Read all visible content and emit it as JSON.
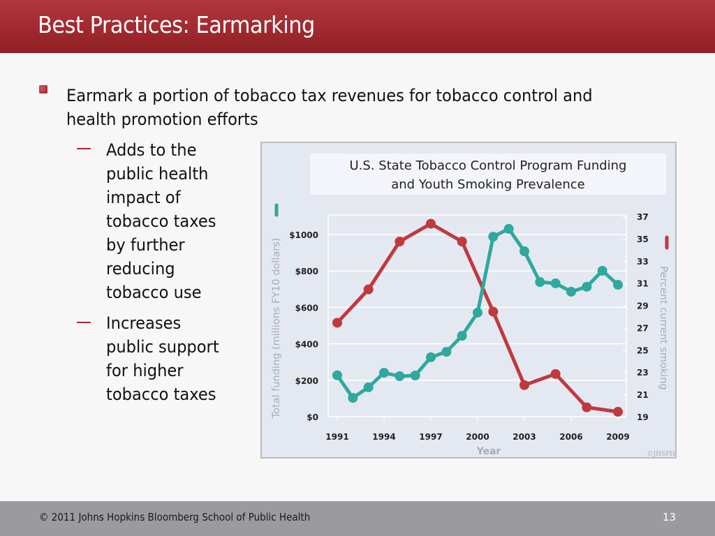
{
  "slide": {
    "title": "Best Practices: Earmarking",
    "page_number": "13",
    "footer": "© 2011 Johns Hopkins Bloomberg School of Public Health"
  },
  "bullets": {
    "main": "Earmark a portion of tobacco tax revenues for tobacco control and health promotion efforts",
    "sub": [
      {
        "lines": [
          "Adds to the",
          "public health",
          "impact of",
          "tobacco taxes",
          "by further",
          "reducing",
          "tobacco use"
        ]
      },
      {
        "lines": [
          "Increases",
          "public support",
          "for higher",
          "tobacco taxes"
        ]
      }
    ]
  },
  "colors": {
    "header": "#a12a30",
    "funding_series": "#2fa89d",
    "smoking_series": "#c0393e",
    "footer": "#9b9a9f"
  },
  "chart_data": {
    "type": "line",
    "title": "U.S. State Tobacco Control Program Funding and Youth Smoking Prevalence",
    "title_lines": [
      "U.S. State Tobacco Control Program Funding",
      "and Youth Smoking Prevalence"
    ],
    "xlabel": "Year",
    "ylabel_left": "Total funding (millions FY10 dollars)",
    "ylabel_right": "Percent current smoking",
    "x_ticks": [
      "1991",
      "1994",
      "1997",
      "2000",
      "2003",
      "2006",
      "2009"
    ],
    "xlim": [
      1991,
      2009
    ],
    "y_left_ticks": [
      "$0",
      "$200",
      "$400",
      "$600",
      "$800",
      "$1000"
    ],
    "y_left_tick_values": [
      0,
      200,
      400,
      600,
      800,
      1000
    ],
    "ylim_left": [
      0,
      1000
    ],
    "y_right_ticks": [
      "19",
      "21",
      "23",
      "25",
      "27",
      "29",
      "31",
      "33",
      "35",
      "37"
    ],
    "y_right_tick_values": [
      19,
      21,
      23,
      25,
      27,
      29,
      31,
      33,
      35,
      37
    ],
    "ylim_right": [
      19,
      37
    ],
    "grid": true,
    "credit": "©JHSPH",
    "series": [
      {
        "name": "Total funding",
        "axis": "left",
        "color": "#2fa89d",
        "x": [
          1991,
          1992,
          1993,
          1994,
          1995,
          1996,
          1997,
          1998,
          1999,
          2000,
          2001,
          2002,
          2003,
          2004,
          2005,
          2006,
          2007,
          2008,
          2009
        ],
        "values": [
          227,
          103,
          161,
          241,
          222,
          226,
          326,
          356,
          444,
          571,
          988,
          1031,
          908,
          739,
          732,
          686,
          713,
          801,
          724
        ]
      },
      {
        "name": "Percent current smoking",
        "axis": "right",
        "color": "#c0393e",
        "x": [
          1991,
          1993,
          1995,
          1997,
          1999,
          2001,
          2003,
          2005,
          2007,
          2009
        ],
        "values": [
          27.5,
          30.5,
          34.8,
          36.4,
          34.8,
          28.5,
          21.9,
          22.9,
          19.9,
          19.5
        ]
      }
    ]
  }
}
